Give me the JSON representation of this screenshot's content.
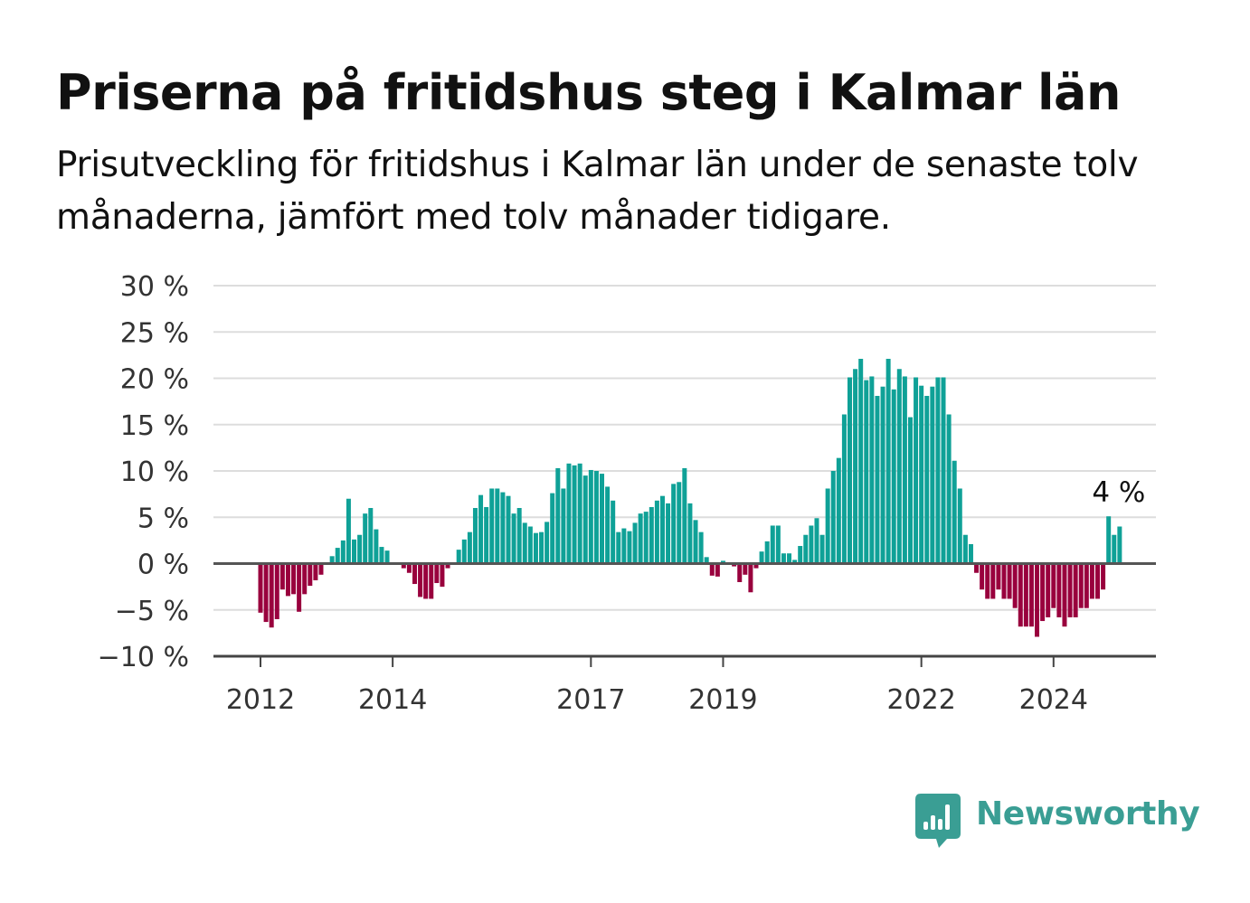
{
  "title": "Priserna på fritidshus steg i Kalmar län",
  "subtitle": "Prisutveckling för fritidshus i Kalmar län under de senaste tolv månaderna, jämfört med tolv månader tidigare.",
  "brand": {
    "name": "Newsworthy",
    "icon": "bar-chart-speech-bubble-icon",
    "color": "#3a9e94"
  },
  "chart_data": {
    "type": "bar",
    "title": "Priserna på fritidshus steg i Kalmar län",
    "subtitle": "Prisutveckling för fritidshus i Kalmar län under de senaste tolv månaderna, jämfört med tolv månader tidigare.",
    "xlabel": "",
    "ylabel": "",
    "unit": "%",
    "ylim": [
      -10,
      30
    ],
    "yticks": [
      -10,
      -5,
      0,
      5,
      10,
      15,
      20,
      25,
      30
    ],
    "ytick_labels": [
      "−10 %",
      "−5 %",
      "0 %",
      "5 %",
      "10 %",
      "15 %",
      "20 %",
      "25 %",
      "30 %"
    ],
    "xticks": [
      2012,
      2014,
      2017,
      2019,
      2022,
      2024
    ],
    "xtick_labels": [
      "2012",
      "2014",
      "2017",
      "2019",
      "2022",
      "2024"
    ],
    "grid": true,
    "legend": "none",
    "colors": {
      "positive": "#0fa197",
      "negative": "#99003d",
      "grid": "#dddddd",
      "zero_line": "#555555"
    },
    "start_month": "2012-01",
    "end_month": "2025-01",
    "values": [
      -5.3,
      -6.3,
      -6.9,
      -6,
      -2.8,
      -3.5,
      -3.3,
      -5.2,
      -3.3,
      -2.4,
      -1.8,
      -1.2,
      0.1,
      0.8,
      1.7,
      2.5,
      7,
      2.6,
      3.1,
      5.4,
      6,
      3.7,
      1.8,
      1.4,
      0,
      0,
      -0.5,
      -1,
      -2.2,
      -3.6,
      -3.8,
      -3.8,
      -2.1,
      -2.5,
      -0.5,
      0,
      1.5,
      2.6,
      3.4,
      6,
      7.4,
      6.1,
      8.1,
      8.1,
      7.7,
      7.3,
      5.4,
      6,
      4.4,
      4,
      3.3,
      3.4,
      4.5,
      7.6,
      10.3,
      8.1,
      10.8,
      10.6,
      10.8,
      9.5,
      10.1,
      10,
      9.7,
      8.3,
      6.8,
      3.4,
      3.8,
      3.5,
      4.4,
      5.4,
      5.6,
      6.1,
      6.8,
      7.3,
      6.5,
      8.6,
      8.8,
      10.3,
      6.5,
      4.7,
      3.4,
      0.7,
      -1.3,
      -1.4,
      0.3,
      0,
      -0.3,
      -2,
      -1.2,
      -3.1,
      -0.5,
      1.3,
      2.4,
      4.1,
      4.1,
      1.1,
      1.1,
      0.4,
      1.9,
      3.1,
      4.1,
      4.9,
      3.1,
      8.1,
      10,
      11.4,
      16.1,
      20.1,
      21,
      22.1,
      19.8,
      20.2,
      18.1,
      19.1,
      22.1,
      18.8,
      21,
      20.2,
      15.8,
      20.1,
      19.2,
      18.1,
      19.1,
      20.1,
      20.1,
      16.1,
      11.1,
      8.1,
      3.1,
      2.1,
      -1,
      -2.8,
      -3.8,
      -3.8,
      -2.8,
      -3.8,
      -3.8,
      -4.8,
      -6.8,
      -6.8,
      -6.8,
      -7.9,
      -6.2,
      -5.8,
      -4.8,
      -5.8,
      -6.8,
      -5.8,
      -5.8,
      -4.8,
      -4.8,
      -3.8,
      -3.8,
      -2.8,
      5.1,
      3.1,
      4
    ],
    "annotations": [
      {
        "text": "4 %",
        "x": "2025-01",
        "y": 4
      }
    ]
  }
}
